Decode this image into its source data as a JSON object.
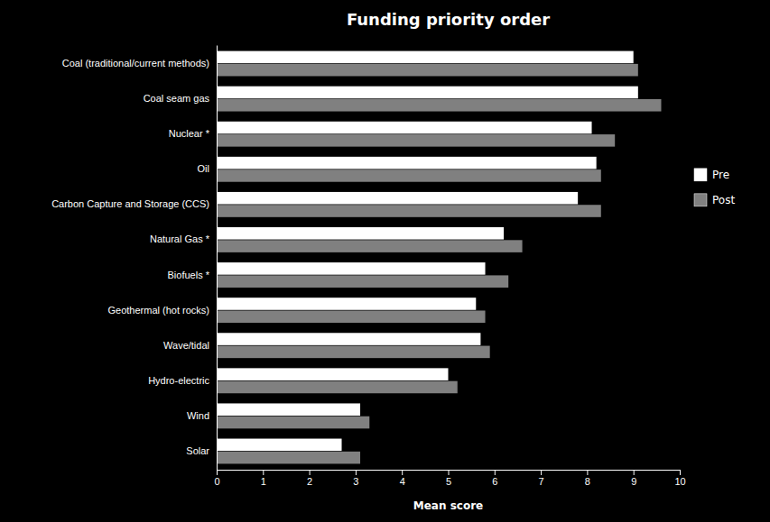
{
  "chart_data": {
    "type": "bar",
    "orientation": "horizontal",
    "title": "Funding priority order",
    "xlabel": "Mean score",
    "categories": [
      "Coal (traditional/current methods)",
      "Coal seam gas",
      "Nuclear *",
      "Oil",
      "Carbon Capture and Storage (CCS)",
      "Natural Gas *",
      "Biofuels *",
      "Geothermal (hot rocks)",
      "Wave/tidal",
      "Hydro-electric",
      "Wind",
      "Solar"
    ],
    "series": [
      {
        "name": "Pre",
        "color": "#ffffff",
        "values": [
          9.0,
          9.1,
          8.1,
          8.2,
          7.8,
          6.2,
          5.8,
          5.6,
          5.7,
          5.0,
          3.1,
          2.7
        ]
      },
      {
        "name": "Post",
        "color": "#808080",
        "values": [
          9.1,
          9.6,
          8.6,
          8.3,
          8.3,
          6.6,
          6.3,
          5.8,
          5.9,
          5.2,
          3.3,
          3.1
        ]
      }
    ],
    "xlim": [
      0,
      10
    ],
    "xticks": [
      0,
      1,
      2,
      3,
      4,
      5,
      6,
      7,
      8,
      9,
      10
    ],
    "grid": false,
    "legend": "right"
  }
}
